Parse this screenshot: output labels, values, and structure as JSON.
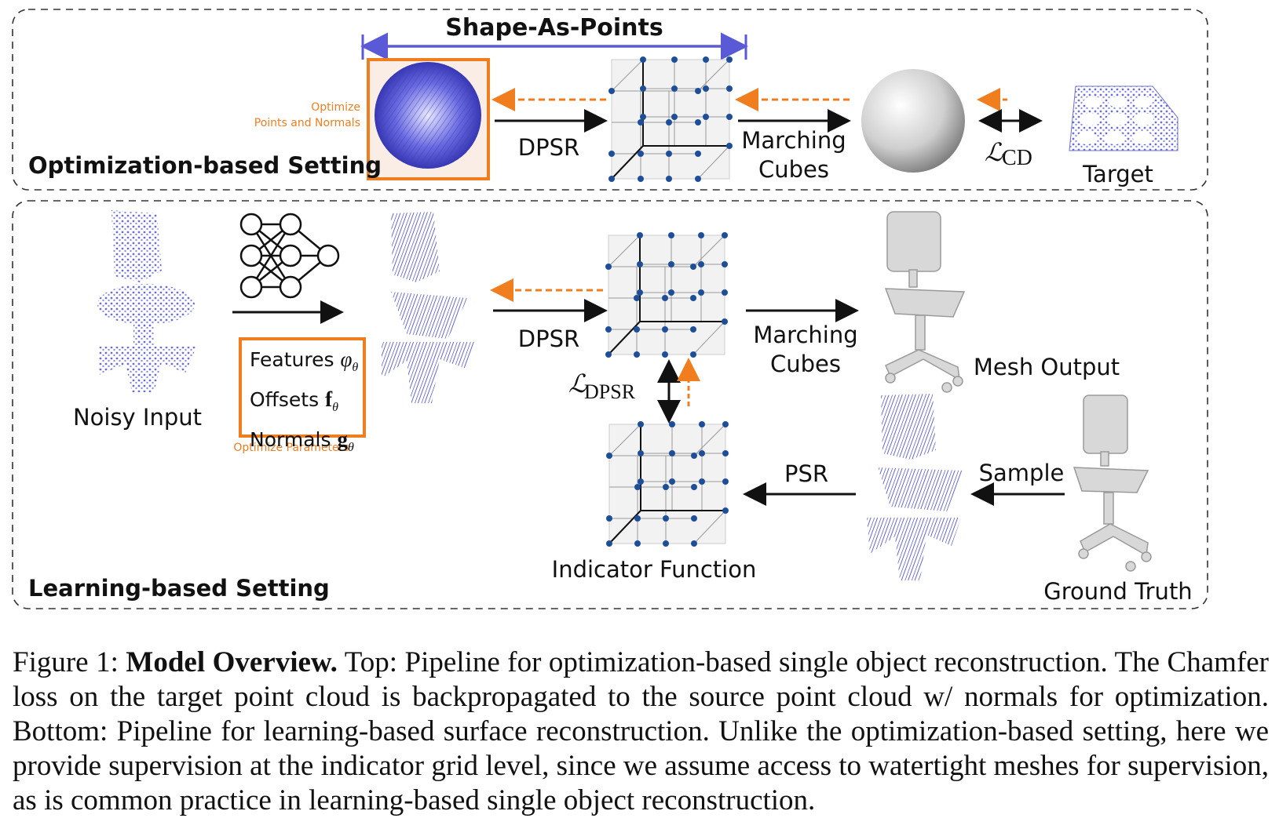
{
  "top_panel": {
    "setting_label": "Optimization-based Setting",
    "shape_as_points_label": "Shape-As-Points",
    "optimize_label_line1": "Optimize",
    "optimize_label_line2": "Points and Normals",
    "dpsr_label": "DPSR",
    "marching_label_line1": "Marching",
    "marching_label_line2": "Cubes",
    "loss_label": "CD",
    "target_label": "Target"
  },
  "bottom_panel": {
    "setting_label": "Learning-based Setting",
    "noisy_input_label": "Noisy Input",
    "features_label": "Features",
    "features_sym": "φ",
    "offsets_label": "Offsets",
    "offsets_sym": "f",
    "normals_label": "Normals",
    "normals_sym": "g",
    "theta": "θ",
    "optimize_params_label": "Optimize Parameters",
    "dpsr_label": "DPSR",
    "marching_label_line1": "Marching",
    "marching_label_line2": "Cubes",
    "mesh_output_label": "Mesh Output",
    "loss_label": "DPSR",
    "psr_label": "PSR",
    "sample_label": "Sample",
    "indicator_label": "Indicator Function",
    "ground_truth_label": "Ground Truth"
  },
  "caption": {
    "label": "Figure 1:",
    "title": "Model Overview.",
    "text": "Top: Pipeline for optimization-based single object reconstruction. The Chamfer loss on the target point cloud is backpropagated to the source point cloud w/ normals for optimization. Bottom: Pipeline for learning-based surface reconstruction. Unlike the optimization-based setting, here we provide supervision at the indicator grid level, since we assume access to watertight meshes for supervision, as is common practice in learning-based single object reconstruction."
  },
  "colors": {
    "orange": "#f07d1e",
    "blue_points": "#4a50c8",
    "grid_dot": "#1f4e99",
    "shape_as_points_bracket": "#5a5ad6"
  }
}
